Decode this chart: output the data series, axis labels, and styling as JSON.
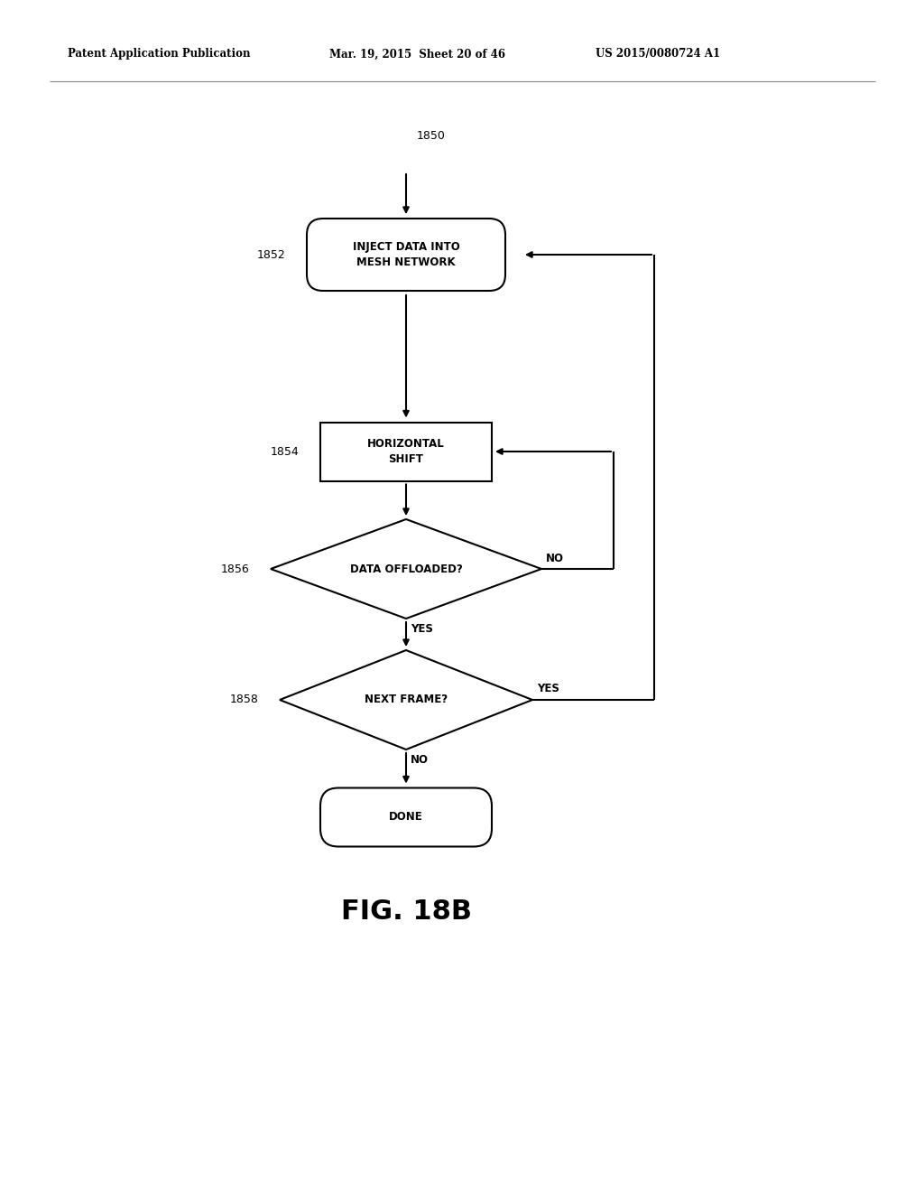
{
  "title_left": "Patent Application Publication",
  "title_mid": "Mar. 19, 2015  Sheet 20 of 46",
  "title_right": "US 2015/0080724 A1",
  "fig_label": "FIG. 18B",
  "background": "#ffffff",
  "nodes": {
    "start_label": "1850",
    "box1_label": "1852",
    "box1_text": "INJECT DATA INTO\nMESH NETWORK",
    "box2_label": "1854",
    "box2_text": "HORIZONTAL\nSHIFT",
    "diamond1_label": "1856",
    "diamond1_text": "DATA OFFLOADED?",
    "diamond1_no": "NO",
    "diamond1_yes": "YES",
    "diamond2_label": "1858",
    "diamond2_text": "NEXT FRAME?",
    "diamond2_yes": "YES",
    "diamond2_no": "NO",
    "done_text": "DONE"
  },
  "colors": {
    "box_edge": "#000000",
    "box_fill": "#ffffff",
    "text": "#000000",
    "arrow": "#000000"
  },
  "lw": 1.5
}
